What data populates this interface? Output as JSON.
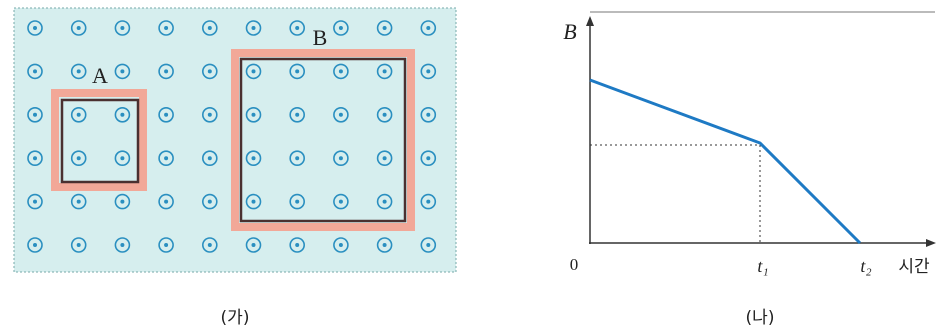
{
  "panel_a": {
    "loop_a_label": "A",
    "loop_b_label": "B",
    "caption": "(가)"
  },
  "panel_b": {
    "y_axis_label": "B",
    "origin_label": "0",
    "t1_label": "t₁",
    "t2_label": "t₂",
    "x_axis_label": "시간",
    "caption": "(나)"
  }
}
